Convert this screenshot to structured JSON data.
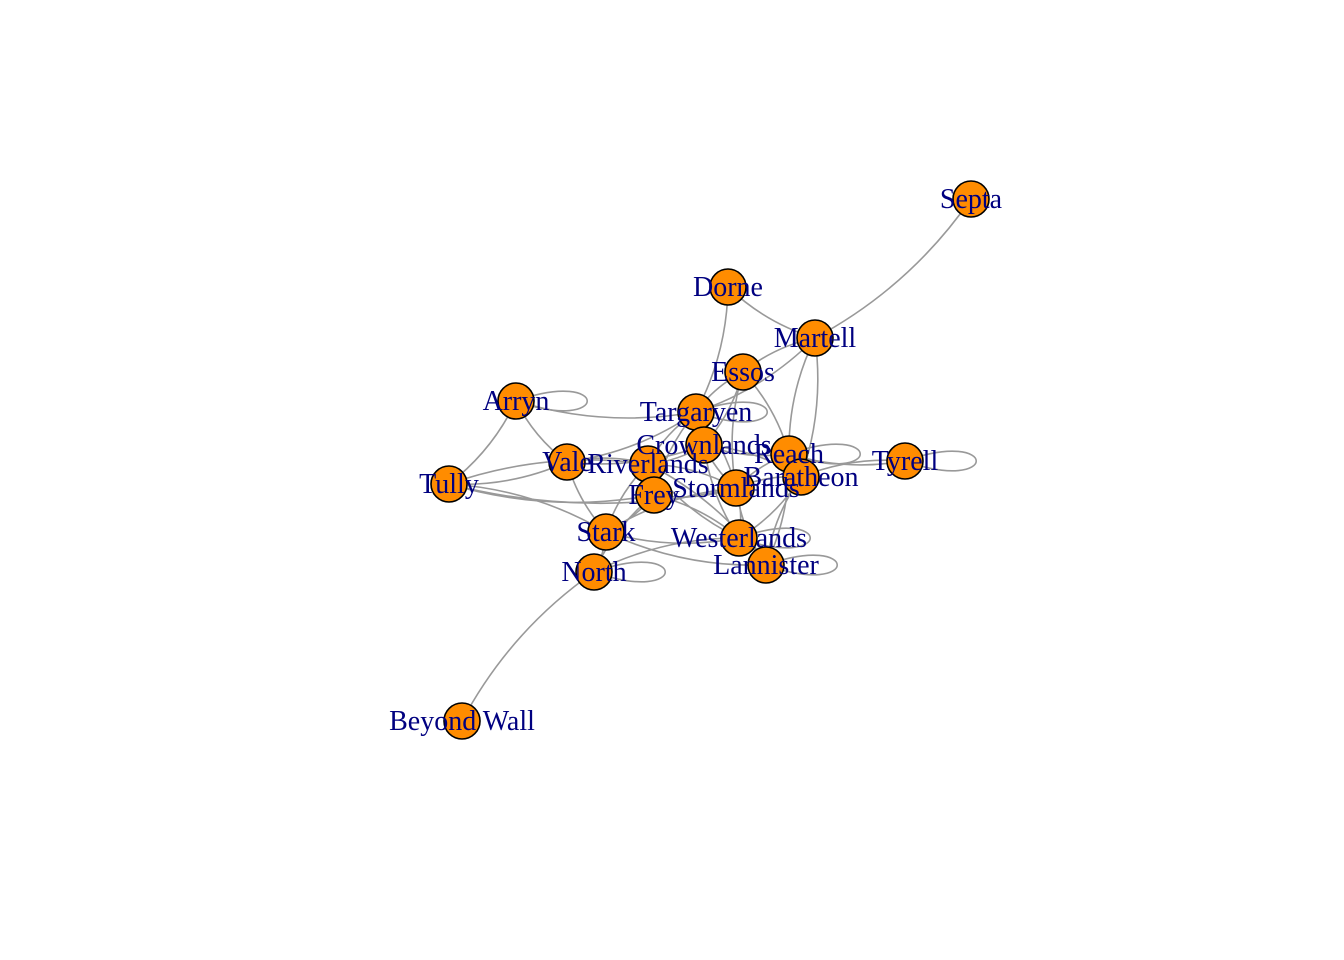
{
  "colors": {
    "node_fill": "#ff8c00",
    "node_stroke": "#000000",
    "edge": "#999999",
    "label": "#000080",
    "background": "#ffffff"
  },
  "network": {
    "nodes": [
      {
        "id": "septa",
        "label": "Septa"
      },
      {
        "id": "dorne",
        "label": "Dorne"
      },
      {
        "id": "martell",
        "label": "Martell"
      },
      {
        "id": "essos",
        "label": "Essos"
      },
      {
        "id": "arryn",
        "label": "Arryn"
      },
      {
        "id": "targaryen",
        "label": "Targaryen"
      },
      {
        "id": "crownlands",
        "label": "Crownlands"
      },
      {
        "id": "reach",
        "label": "Reach"
      },
      {
        "id": "tyrell",
        "label": "Tyrell"
      },
      {
        "id": "vale",
        "label": "Vale"
      },
      {
        "id": "riverlands",
        "label": "Riverlands"
      },
      {
        "id": "baratheon",
        "label": "Baratheon"
      },
      {
        "id": "tully",
        "label": "Tully"
      },
      {
        "id": "stormlands",
        "label": "Stormlands"
      },
      {
        "id": "frey",
        "label": "Frey"
      },
      {
        "id": "stark",
        "label": "Stark"
      },
      {
        "id": "westerlands",
        "label": "Westerlands"
      },
      {
        "id": "north",
        "label": "North"
      },
      {
        "id": "lannister",
        "label": "Lannister"
      },
      {
        "id": "beyond_wall",
        "label": "Beyond Wall"
      }
    ],
    "edges": [
      [
        "septa",
        "martell"
      ],
      [
        "dorne",
        "martell"
      ],
      [
        "dorne",
        "targaryen"
      ],
      [
        "martell",
        "essos"
      ],
      [
        "martell",
        "targaryen"
      ],
      [
        "martell",
        "reach"
      ],
      [
        "martell",
        "baratheon"
      ],
      [
        "essos",
        "targaryen"
      ],
      [
        "essos",
        "crownlands"
      ],
      [
        "essos",
        "stormlands"
      ],
      [
        "essos",
        "reach"
      ],
      [
        "arryn",
        "vale"
      ],
      [
        "arryn",
        "tully"
      ],
      [
        "arryn",
        "targaryen"
      ],
      [
        "targaryen",
        "crownlands"
      ],
      [
        "targaryen",
        "riverlands"
      ],
      [
        "targaryen",
        "stormlands"
      ],
      [
        "targaryen",
        "frey"
      ],
      [
        "targaryen",
        "vale"
      ],
      [
        "crownlands",
        "reach"
      ],
      [
        "crownlands",
        "baratheon"
      ],
      [
        "crownlands",
        "stormlands"
      ],
      [
        "crownlands",
        "riverlands"
      ],
      [
        "crownlands",
        "westerlands"
      ],
      [
        "crownlands",
        "vale"
      ],
      [
        "reach",
        "tyrell"
      ],
      [
        "reach",
        "baratheon"
      ],
      [
        "reach",
        "stormlands"
      ],
      [
        "baratheon",
        "tyrell"
      ],
      [
        "baratheon",
        "stormlands"
      ],
      [
        "baratheon",
        "westerlands"
      ],
      [
        "baratheon",
        "lannister"
      ],
      [
        "vale",
        "riverlands"
      ],
      [
        "vale",
        "stark"
      ],
      [
        "vale",
        "tully"
      ],
      [
        "riverlands",
        "tully"
      ],
      [
        "riverlands",
        "frey"
      ],
      [
        "riverlands",
        "stark"
      ],
      [
        "riverlands",
        "stormlands"
      ],
      [
        "riverlands",
        "westerlands"
      ],
      [
        "riverlands",
        "lannister"
      ],
      [
        "tully",
        "frey"
      ],
      [
        "tully",
        "stark"
      ],
      [
        "tully",
        "stormlands"
      ],
      [
        "frey",
        "stark"
      ],
      [
        "frey",
        "stormlands"
      ],
      [
        "frey",
        "westerlands"
      ],
      [
        "frey",
        "north"
      ],
      [
        "stark",
        "north"
      ],
      [
        "stark",
        "westerlands"
      ],
      [
        "stark",
        "stormlands"
      ],
      [
        "stark",
        "lannister"
      ],
      [
        "stormlands",
        "westerlands"
      ],
      [
        "stormlands",
        "lannister"
      ],
      [
        "westerlands",
        "lannister"
      ],
      [
        "north",
        "beyond_wall"
      ],
      [
        "north",
        "westerlands"
      ],
      [
        "lannister",
        "reach"
      ]
    ],
    "self_loops": [
      "arryn",
      "targaryen",
      "reach",
      "tyrell",
      "westerlands",
      "lannister",
      "north"
    ]
  }
}
